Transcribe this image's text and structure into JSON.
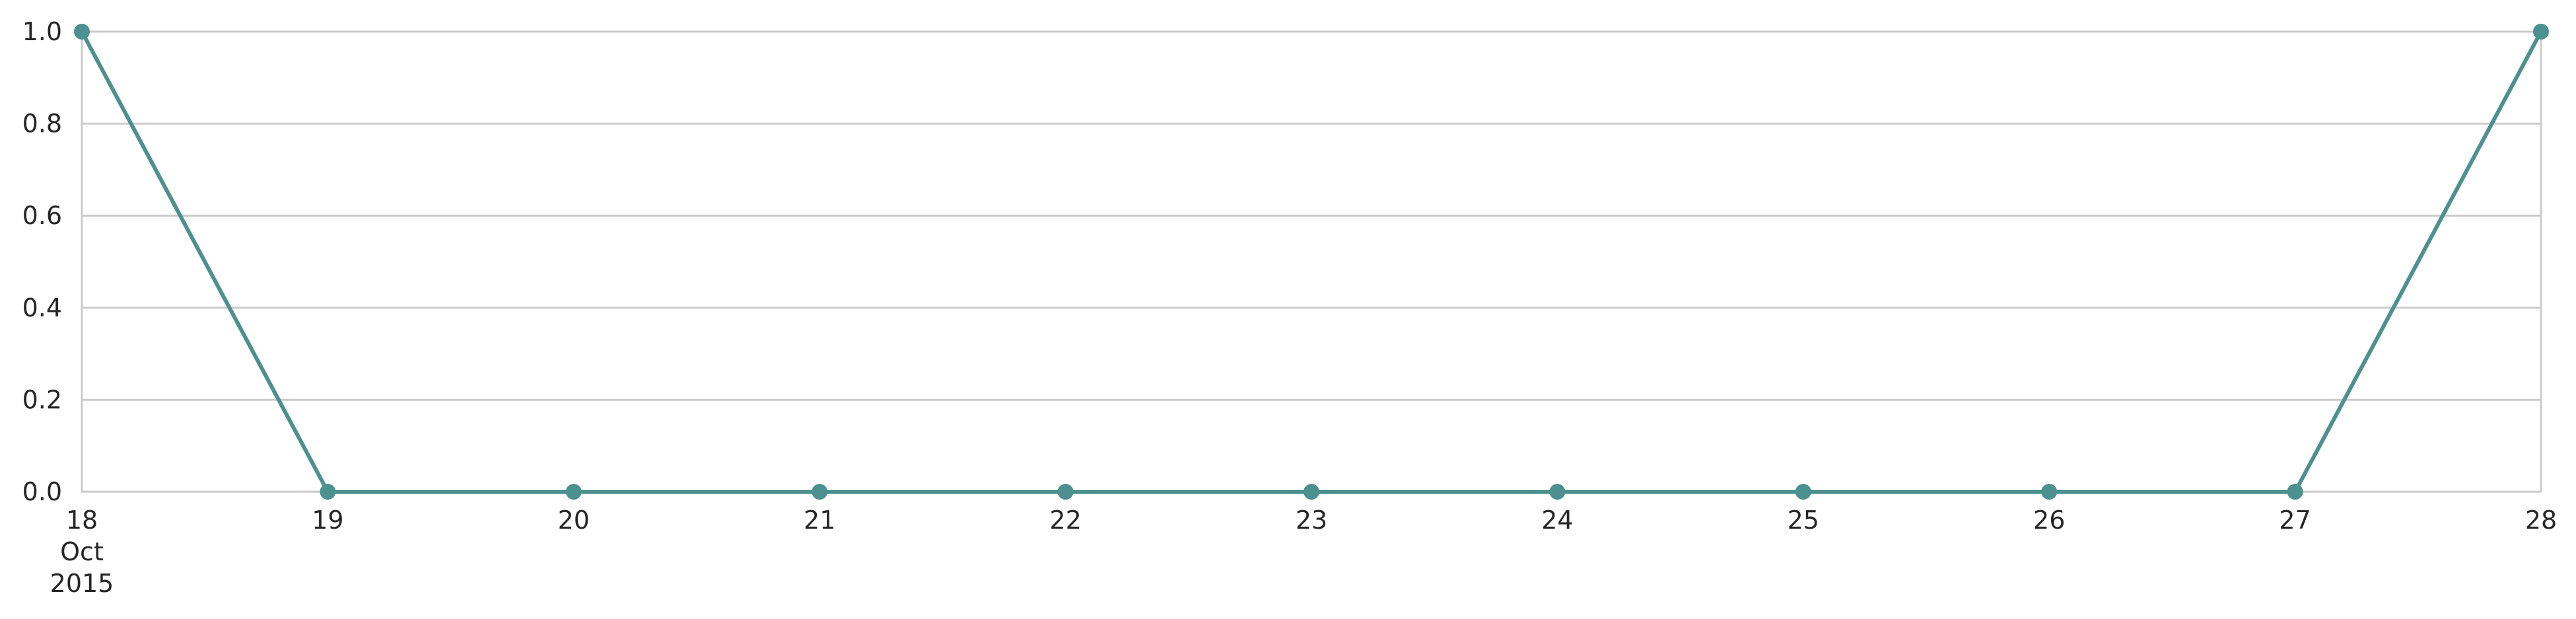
{
  "chart_data": {
    "type": "line",
    "title": "",
    "xlabel": "",
    "ylabel": "",
    "x": [
      "2015-10-18",
      "2015-10-19",
      "2015-10-20",
      "2015-10-21",
      "2015-10-22",
      "2015-10-23",
      "2015-10-24",
      "2015-10-25",
      "2015-10-26",
      "2015-10-27",
      "2015-10-28"
    ],
    "x_tick_labels": [
      [
        "18",
        "Oct",
        "2015"
      ],
      [
        "19"
      ],
      [
        "20"
      ],
      [
        "21"
      ],
      [
        "22"
      ],
      [
        "23"
      ],
      [
        "24"
      ],
      [
        "25"
      ],
      [
        "26"
      ],
      [
        "27"
      ],
      [
        "28"
      ]
    ],
    "series": [
      {
        "values": [
          1,
          0,
          0,
          0,
          0,
          0,
          0,
          0,
          0,
          0,
          1
        ],
        "color": "#4c9090"
      }
    ],
    "ylim": [
      0,
      1
    ],
    "y_ticks": [
      0.0,
      0.2,
      0.4,
      0.6,
      0.8,
      1.0
    ],
    "y_tick_labels": [
      "0.0",
      "0.2",
      "0.4",
      "0.6",
      "0.8",
      "1.0"
    ],
    "grid": "horizontal",
    "legend": "none"
  }
}
